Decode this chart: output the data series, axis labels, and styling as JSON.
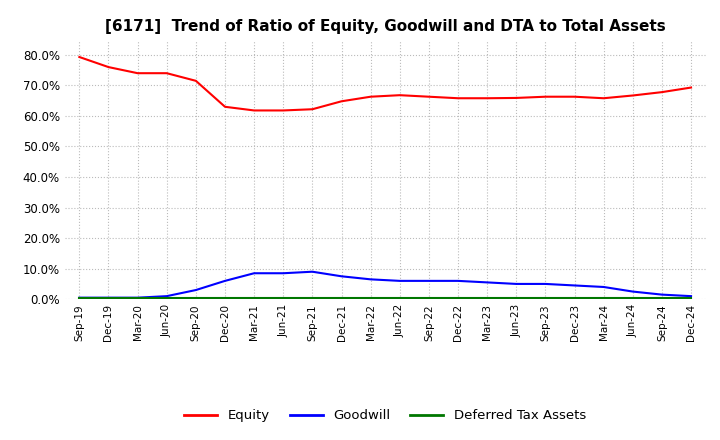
{
  "title": "[6171]  Trend of Ratio of Equity, Goodwill and DTA to Total Assets",
  "title_fontsize": 11,
  "ylim": [
    0.0,
    0.85
  ],
  "yticks": [
    0.0,
    0.1,
    0.2,
    0.3,
    0.4,
    0.5,
    0.6,
    0.7,
    0.8
  ],
  "background_color": "#ffffff",
  "plot_bg_color": "#ffffff",
  "grid_color": "#bbbbbb",
  "x_labels": [
    "Sep-19",
    "Dec-19",
    "Mar-20",
    "Jun-20",
    "Sep-20",
    "Dec-20",
    "Mar-21",
    "Jun-21",
    "Sep-21",
    "Dec-21",
    "Mar-22",
    "Jun-22",
    "Sep-22",
    "Dec-22",
    "Mar-23",
    "Jun-23",
    "Sep-23",
    "Dec-23",
    "Mar-24",
    "Jun-24",
    "Sep-24",
    "Dec-24"
  ],
  "equity": [
    0.793,
    0.76,
    0.74,
    0.74,
    0.715,
    0.63,
    0.618,
    0.618,
    0.622,
    0.648,
    0.663,
    0.668,
    0.663,
    0.658,
    0.658,
    0.659,
    0.663,
    0.663,
    0.658,
    0.667,
    0.678,
    0.693
  ],
  "goodwill": [
    0.005,
    0.005,
    0.005,
    0.01,
    0.03,
    0.06,
    0.085,
    0.085,
    0.09,
    0.075,
    0.065,
    0.06,
    0.06,
    0.06,
    0.055,
    0.05,
    0.05,
    0.045,
    0.04,
    0.025,
    0.015,
    0.01
  ],
  "dta": [
    0.003,
    0.003,
    0.003,
    0.003,
    0.003,
    0.003,
    0.003,
    0.003,
    0.003,
    0.003,
    0.003,
    0.003,
    0.003,
    0.003,
    0.003,
    0.003,
    0.003,
    0.003,
    0.003,
    0.003,
    0.003,
    0.003
  ],
  "equity_color": "#ff0000",
  "goodwill_color": "#0000ff",
  "dta_color": "#007700",
  "line_width": 1.5,
  "legend_labels": [
    "Equity",
    "Goodwill",
    "Deferred Tax Assets"
  ]
}
